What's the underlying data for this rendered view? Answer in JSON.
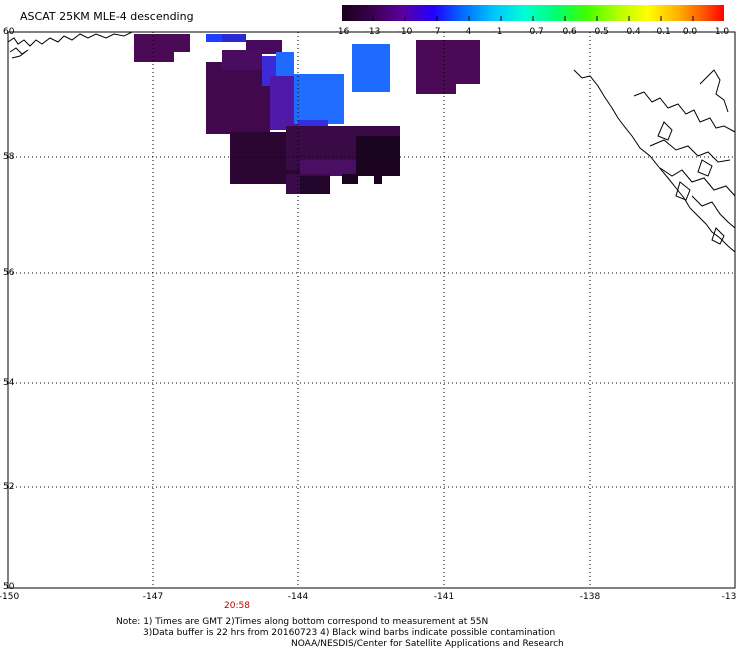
{
  "title": "ASCAT 25KM MLE-4 descending",
  "colorbar": {
    "labels": [
      "-16",
      "-13",
      "-10",
      "-7",
      "-4",
      "-1",
      "-0.7",
      "-0.6",
      "-0.5",
      "-0.4",
      "-0.1",
      "0.0",
      "1.0"
    ]
  },
  "map": {
    "lat_labels": [
      "60",
      "58",
      "56",
      "54",
      "52",
      "50"
    ],
    "lon_labels": [
      "-150",
      "-147",
      "-144",
      "-141",
      "-138",
      "-13"
    ],
    "time_label": "20:58"
  },
  "notes": {
    "line1": "Note: 1) Times are GMT 2)Times along bottom correspond to measurement at 55N",
    "line2": "3)Data buffer is 22 hrs from 20160723 4) Black wind barbs indicate possible contamination",
    "line3": "NOAA/NESDIS/Center for Satellite Applications and Research"
  }
}
